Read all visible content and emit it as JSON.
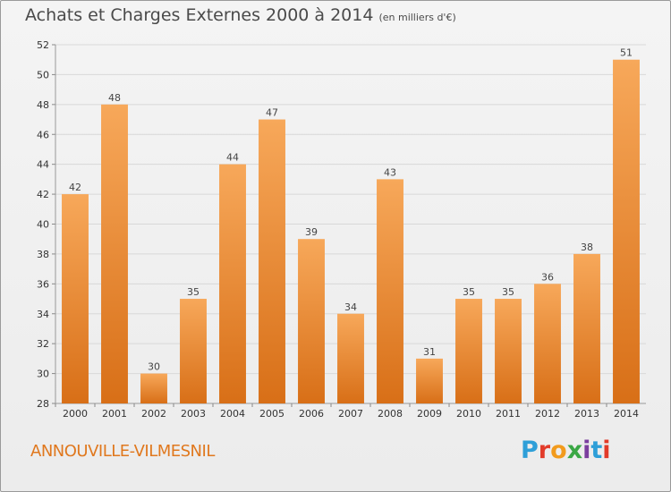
{
  "header": {
    "title": "Achats et Charges Externes 2000 à 2014",
    "subtitle": "(en milliers d'€)"
  },
  "footer": {
    "town": "ANNOUVILLE-VILMESNIL",
    "brand": "Proxiti",
    "brand_colors": [
      "#2e9fd8",
      "#e23b2a",
      "#f29b1d",
      "#3aa744",
      "#7b3f9e",
      "#2e9fd8",
      "#e23b2a"
    ]
  },
  "colors": {
    "bar_top": "#f7a85a",
    "bar_bottom": "#d86f17",
    "grid": "#d8d8d8",
    "town": "#e0781e"
  },
  "chart_data": {
    "type": "bar",
    "title": "Achats et Charges Externes 2000 à 2014",
    "subtitle": "(en milliers d'€)",
    "categories": [
      "2000",
      "2001",
      "2002",
      "2003",
      "2004",
      "2005",
      "2006",
      "2007",
      "2008",
      "2009",
      "2010",
      "2011",
      "2012",
      "2013",
      "2014"
    ],
    "values": [
      42,
      48,
      30,
      35,
      44,
      47,
      39,
      34,
      43,
      31,
      35,
      35,
      36,
      38,
      51
    ],
    "ylim": [
      28,
      52
    ],
    "yticks": [
      28,
      30,
      32,
      34,
      36,
      38,
      40,
      42,
      44,
      46,
      48,
      50,
      52
    ],
    "grid": true,
    "data_labels": true
  }
}
